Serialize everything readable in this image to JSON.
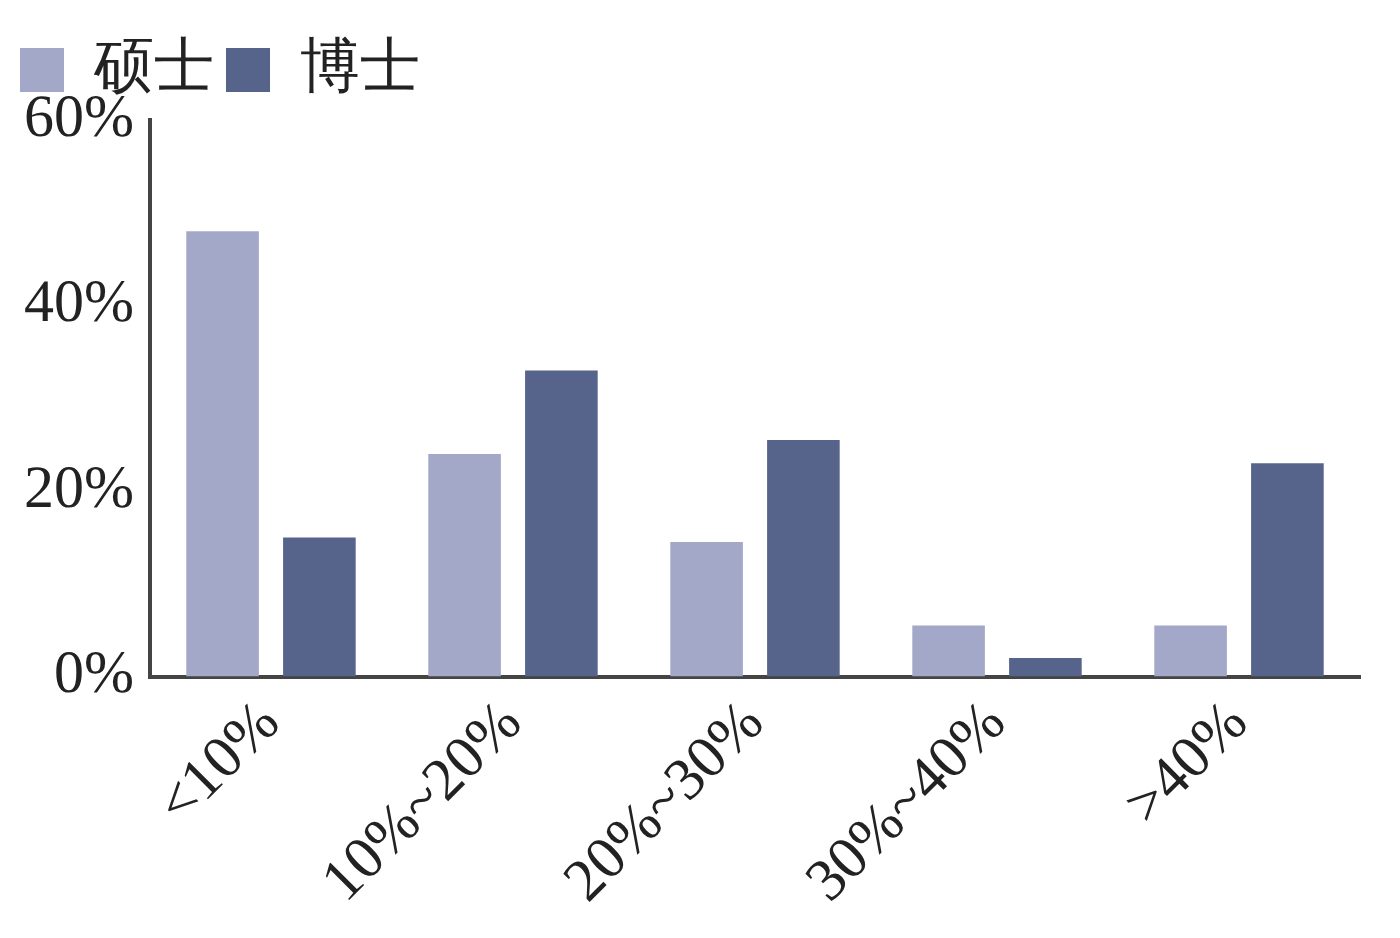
{
  "chart_data": {
    "type": "bar",
    "categories": [
      "<10%",
      "10%~20%",
      "20%~30%",
      "30%~40%",
      ">40%"
    ],
    "series": [
      {
        "name": "硕士",
        "color": "#a3a8c8",
        "values": [
          48,
          24,
          14.5,
          5.5,
          5.5
        ]
      },
      {
        "name": "博士",
        "color": "#56648c",
        "values": [
          15,
          33,
          25.5,
          2,
          23
        ]
      }
    ],
    "ylim": [
      0,
      60
    ],
    "yticks": [
      {
        "value": 0,
        "label": "0%"
      },
      {
        "value": 20,
        "label": "20%"
      },
      {
        "value": 40,
        "label": "40%"
      },
      {
        "value": 60,
        "label": "60%"
      }
    ],
    "grid": false,
    "legend": "top left"
  }
}
